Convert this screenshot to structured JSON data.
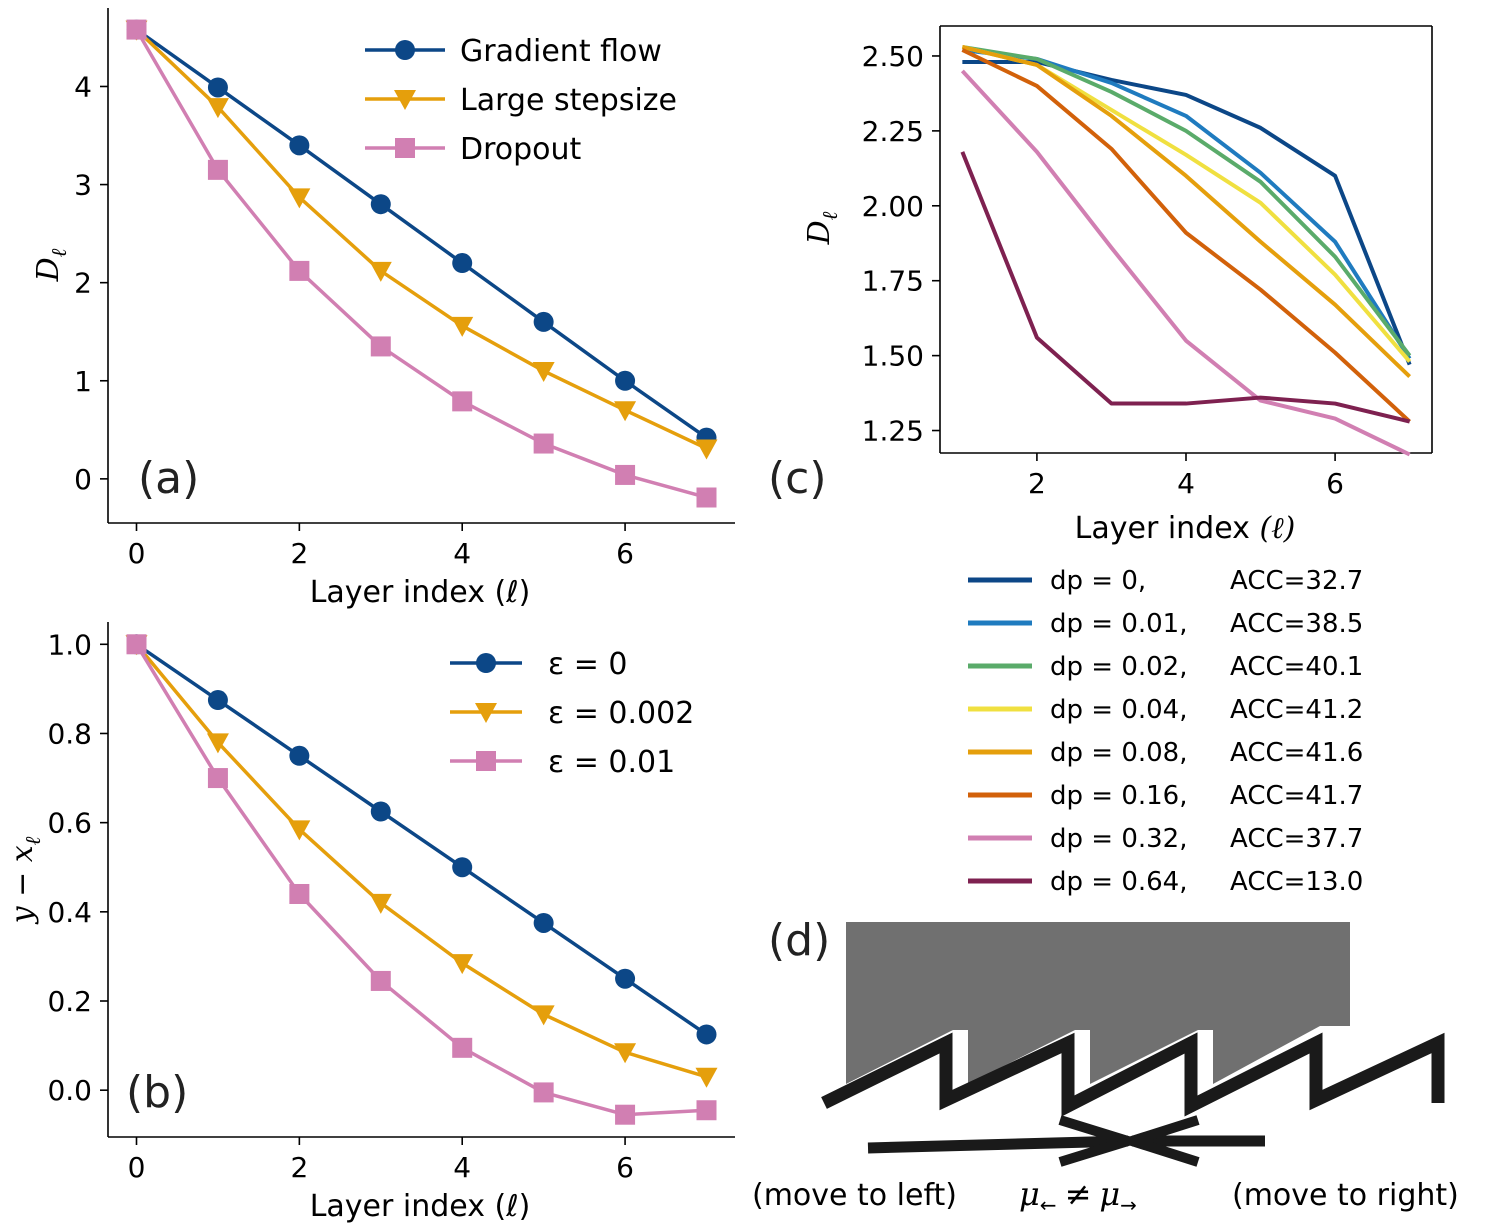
{
  "panels": {
    "a": {
      "label": "(a)",
      "xlabel": "Layer index (ℓ)",
      "ylabel_main": "D",
      "ylabel_sub": "ℓ"
    },
    "b": {
      "label": "(b)",
      "xlabel": "Layer index (ℓ)",
      "ylabel_y": "y",
      "ylabel_minus": " − ",
      "ylabel_x": "x",
      "ylabel_sub": "ℓ"
    },
    "c": {
      "label": "(c)",
      "xlabel_text": "Layer index ",
      "xlabel_math": "(ℓ)",
      "ylabel_main": "D",
      "ylabel_sub": "ℓ"
    },
    "d": {
      "label": "(d)",
      "left_text": "(move to left)",
      "right_text": "(move to right)",
      "mu": "μ",
      "arrow_left": "←",
      "arrow_right": "→",
      "neq": "≠",
      "colors": {
        "block": "#707070",
        "ratchet": "#1a1a1a"
      }
    }
  },
  "chart_data": [
    {
      "id": "a",
      "type": "line",
      "xlabel": "Layer index (ℓ)",
      "ylabel": "Dℓ",
      "xlim": [
        -0.35,
        7.35
      ],
      "ylim": [
        -0.45,
        4.8
      ],
      "xticks": [
        0,
        2,
        4,
        6
      ],
      "yticks": [
        0,
        1,
        2,
        3,
        4
      ],
      "x": [
        0,
        1,
        2,
        3,
        4,
        5,
        6,
        7
      ],
      "legend_position": "top-right",
      "series": [
        {
          "name": "Gradient flow",
          "color": "#0c4787",
          "marker": "circle",
          "values": [
            4.58,
            3.99,
            3.4,
            2.8,
            2.2,
            1.6,
            1.0,
            0.42
          ]
        },
        {
          "name": "Large stepsize",
          "color": "#e59f0c",
          "marker": "triangle-down",
          "values": [
            4.58,
            3.79,
            2.87,
            2.12,
            1.56,
            1.1,
            0.7,
            0.31
          ]
        },
        {
          "name": "Dropout",
          "color": "#d17fb2",
          "marker": "square",
          "values": [
            4.58,
            3.15,
            2.12,
            1.35,
            0.79,
            0.36,
            0.04,
            -0.19
          ]
        }
      ]
    },
    {
      "id": "b",
      "type": "line",
      "xlabel": "Layer index (ℓ)",
      "ylabel": "y − xℓ",
      "xlim": [
        -0.35,
        7.35
      ],
      "ylim": [
        -0.105,
        1.05
      ],
      "xticks": [
        0,
        2,
        4,
        6
      ],
      "yticks": [
        0.0,
        0.2,
        0.4,
        0.6,
        0.8,
        1.0
      ],
      "ytick_labels": [
        "0.0",
        "0.2",
        "0.4",
        "0.6",
        "0.8",
        "1.0"
      ],
      "x": [
        0,
        1,
        2,
        3,
        4,
        5,
        6,
        7
      ],
      "legend_position": "top-right",
      "series": [
        {
          "name": "ε = 0",
          "color": "#0c4787",
          "marker": "circle",
          "values": [
            1.0,
            0.875,
            0.75,
            0.625,
            0.5,
            0.375,
            0.25,
            0.125
          ]
        },
        {
          "name": "ε = 0.002",
          "color": "#e59f0c",
          "marker": "triangle-down",
          "values": [
            1.0,
            0.78,
            0.585,
            0.42,
            0.285,
            0.17,
            0.085,
            0.03
          ]
        },
        {
          "name": "ε = 0.01",
          "color": "#d17fb2",
          "marker": "square",
          "values": [
            1.0,
            0.7,
            0.44,
            0.245,
            0.095,
            -0.005,
            -0.055,
            -0.045
          ]
        }
      ]
    },
    {
      "id": "c",
      "type": "line",
      "xlabel": "Layer index (ℓ)",
      "ylabel": "Dℓ",
      "xlim": [
        0.7,
        7.3
      ],
      "ylim": [
        1.175,
        2.6
      ],
      "xticks": [
        2,
        4,
        6
      ],
      "yticks": [
        1.25,
        1.5,
        1.75,
        2.0,
        2.25,
        2.5
      ],
      "ytick_labels": [
        "1.25",
        "1.50",
        "1.75",
        "2.00",
        "2.25",
        "2.50"
      ],
      "x": [
        1,
        2,
        3,
        4,
        5,
        6,
        7
      ],
      "legend_position": "below",
      "series": [
        {
          "name": "dp = 0,",
          "acc": "ACC=32.7",
          "color": "#0c4787",
          "values": [
            2.48,
            2.48,
            2.42,
            2.37,
            2.26,
            2.1,
            1.47
          ]
        },
        {
          "name": "dp = 0.01,",
          "acc": "ACC=38.5",
          "color": "#1f7bbf",
          "values": [
            2.52,
            2.49,
            2.41,
            2.3,
            2.11,
            1.88,
            1.49
          ]
        },
        {
          "name": "dp = 0.02,",
          "acc": "ACC=40.1",
          "color": "#5aab6a",
          "values": [
            2.53,
            2.49,
            2.38,
            2.25,
            2.08,
            1.83,
            1.5
          ]
        },
        {
          "name": "dp = 0.04,",
          "acc": "ACC=41.2",
          "color": "#f0e040",
          "values": [
            2.53,
            2.47,
            2.32,
            2.17,
            2.01,
            1.77,
            1.48
          ]
        },
        {
          "name": "dp = 0.08,",
          "acc": "ACC=41.6",
          "color": "#e59f0c",
          "values": [
            2.53,
            2.47,
            2.3,
            2.1,
            1.88,
            1.67,
            1.43
          ]
        },
        {
          "name": "dp = 0.16,",
          "acc": "ACC=41.7",
          "color": "#d2610a",
          "values": [
            2.52,
            2.4,
            2.19,
            1.91,
            1.72,
            1.51,
            1.28
          ]
        },
        {
          "name": "dp = 0.32,",
          "acc": "ACC=37.7",
          "color": "#d17fb2",
          "values": [
            2.45,
            2.18,
            1.86,
            1.55,
            1.35,
            1.29,
            1.17
          ]
        },
        {
          "name": "dp = 0.64,",
          "acc": "ACC=13.0",
          "color": "#7e2150",
          "values": [
            2.18,
            1.56,
            1.34,
            1.34,
            1.36,
            1.34,
            1.28
          ]
        }
      ]
    }
  ]
}
